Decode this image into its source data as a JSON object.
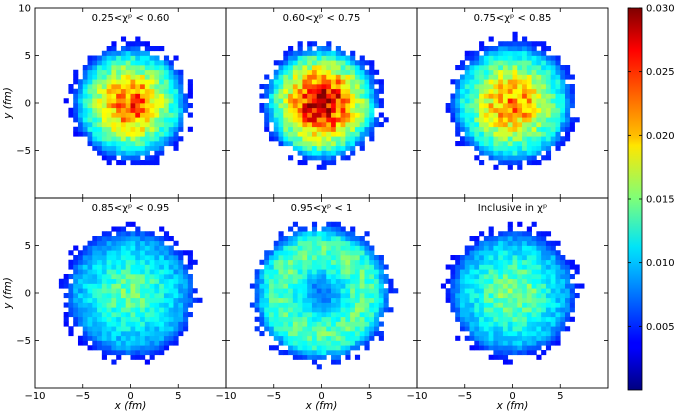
{
  "chart_data": {
    "type": "heatmap",
    "xlabel": "x (fm)",
    "ylabel": "y (fm)",
    "xlim": [
      -10,
      10
    ],
    "ylim": [
      -10,
      10
    ],
    "x_ticks": [
      "−10",
      "−5",
      "0",
      "5"
    ],
    "y_ticks": [
      "10",
      "5",
      "0",
      "−5"
    ],
    "y_ticks_lower": [
      "5",
      "0",
      "−5"
    ],
    "colorbar": {
      "vmin": 0,
      "vmax": 0.03,
      "ticks": [
        "0.005",
        "0.010",
        "0.015",
        "0.020",
        "0.025",
        "0.030"
      ],
      "colormap": "jet"
    },
    "panels": [
      {
        "title": "0.25<χᵖ < 0.60",
        "radius_fm": 6.3,
        "peak": 0.0235,
        "center_bias": 1.0,
        "ring": false,
        "seed": 11
      },
      {
        "title": "0.60<χᵖ < 0.75",
        "radius_fm": 6.3,
        "peak": 0.028,
        "center_bias": 1.0,
        "ring": false,
        "seed": 23
      },
      {
        "title": "0.75<χᵖ < 0.85",
        "radius_fm": 6.6,
        "peak": 0.022,
        "center_bias": 0.9,
        "ring": false,
        "seed": 37
      },
      {
        "title": "0.85<χᵖ < 0.95",
        "radius_fm": 7.0,
        "peak": 0.0135,
        "center_bias": 0.7,
        "ring": false,
        "seed": 41
      },
      {
        "title": "0.95<χᵖ < 1",
        "radius_fm": 7.3,
        "peak": 0.0125,
        "center_bias": 0.0,
        "ring": true,
        "seed": 53
      },
      {
        "title": "Inclusive in χᵖ",
        "radius_fm": 6.9,
        "peak": 0.0145,
        "center_bias": 0.75,
        "ring": false,
        "seed": 67
      }
    ]
  }
}
